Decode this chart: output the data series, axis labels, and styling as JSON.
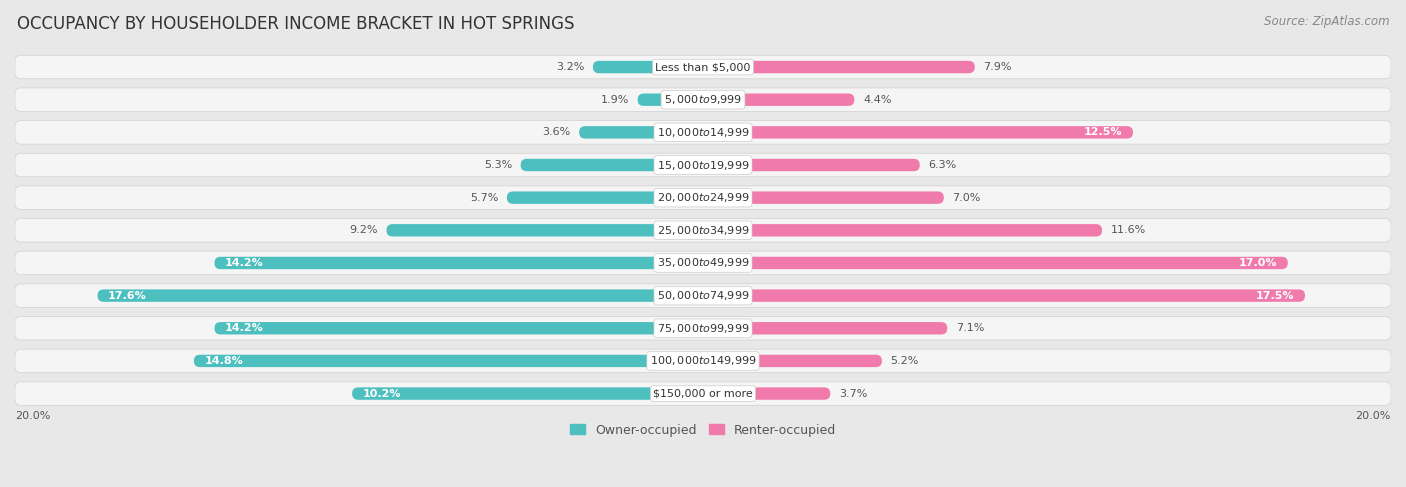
{
  "title": "OCCUPANCY BY HOUSEHOLDER INCOME BRACKET IN HOT SPRINGS",
  "source": "Source: ZipAtlas.com",
  "categories": [
    "Less than $5,000",
    "$5,000 to $9,999",
    "$10,000 to $14,999",
    "$15,000 to $19,999",
    "$20,000 to $24,999",
    "$25,000 to $34,999",
    "$35,000 to $49,999",
    "$50,000 to $74,999",
    "$75,000 to $99,999",
    "$100,000 to $149,999",
    "$150,000 or more"
  ],
  "owner_values": [
    3.2,
    1.9,
    3.6,
    5.3,
    5.7,
    9.2,
    14.2,
    17.6,
    14.2,
    14.8,
    10.2
  ],
  "renter_values": [
    7.9,
    4.4,
    12.5,
    6.3,
    7.0,
    11.6,
    17.0,
    17.5,
    7.1,
    5.2,
    3.7
  ],
  "owner_color": "#4dbfbf",
  "renter_color": "#f07aab",
  "owner_label": "Owner-occupied",
  "renter_label": "Renter-occupied",
  "xlim": 20.0,
  "background_color": "#e8e8e8",
  "row_bg_color": "#f5f5f5",
  "row_border_color": "#d0d0d0",
  "title_fontsize": 12,
  "source_fontsize": 8.5,
  "value_fontsize": 8,
  "category_fontsize": 8,
  "legend_fontsize": 9
}
